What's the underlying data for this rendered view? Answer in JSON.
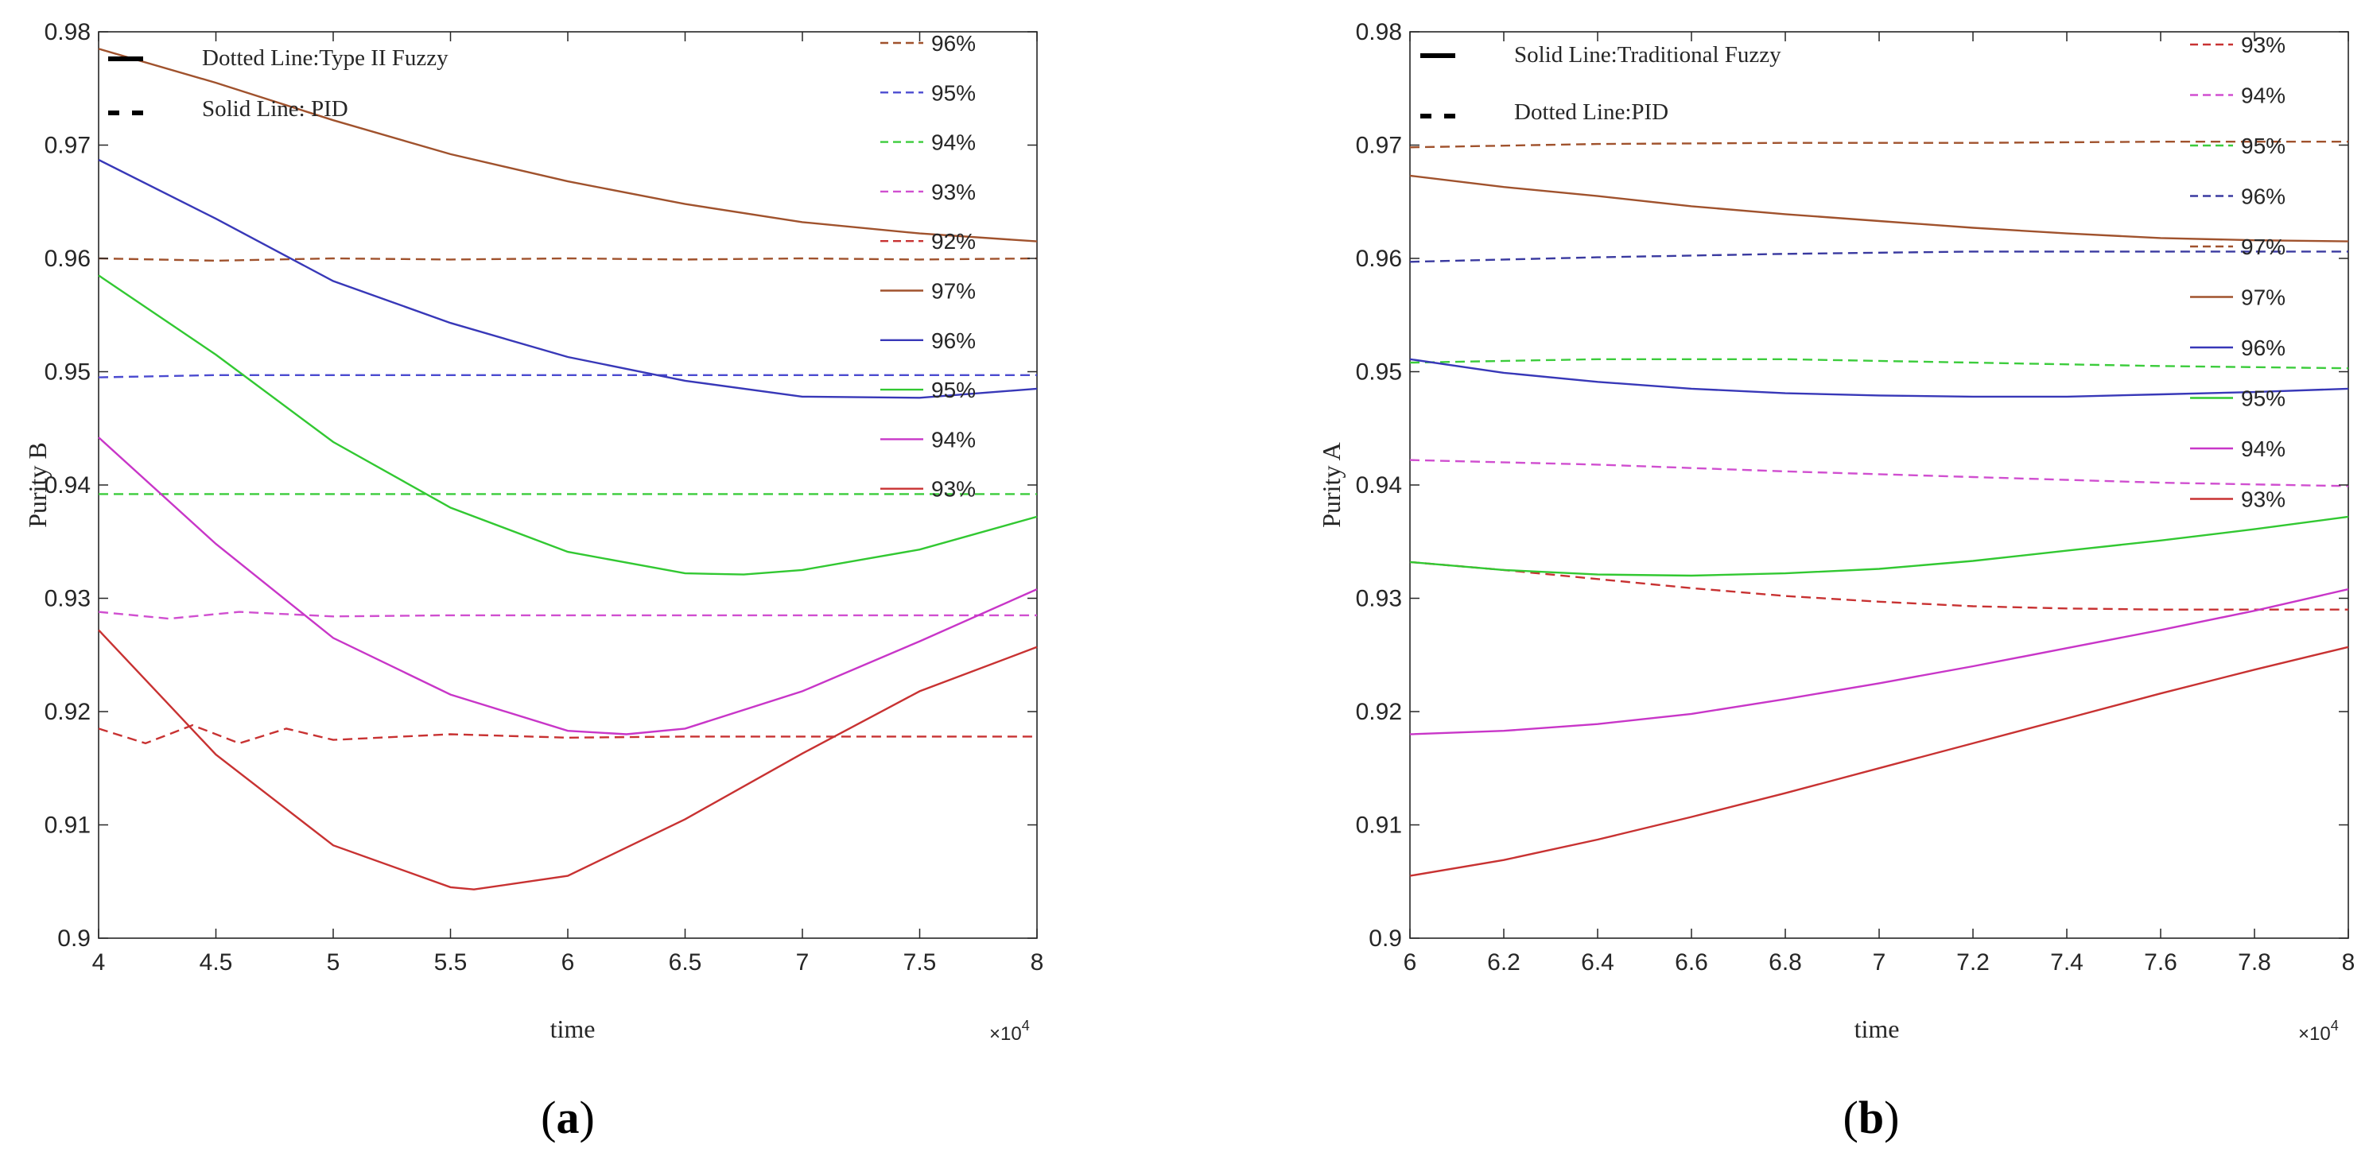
{
  "chart_data": [
    {
      "type": "line",
      "panel": "(a)",
      "caption_letter": "a",
      "xlabel": "time",
      "ylabel": "Purity B",
      "x_multiplier": "×10",
      "x_multiplier_exp": "4",
      "xlim": [
        4,
        8
      ],
      "ylim": [
        0.9,
        0.98
      ],
      "xticks": [
        "4",
        "4.5",
        "5",
        "5.5",
        "6",
        "6.5",
        "7",
        "7.5",
        "8"
      ],
      "xtick_values": [
        4,
        4.5,
        5,
        5.5,
        6,
        6.5,
        7,
        7.5,
        8
      ],
      "yticks": [
        "0.9",
        "0.91",
        "0.92",
        "0.93",
        "0.94",
        "0.95",
        "0.96",
        "0.97",
        "0.98"
      ],
      "ytick_values": [
        0.9,
        0.91,
        0.92,
        0.93,
        0.94,
        0.95,
        0.96,
        0.97,
        0.98
      ],
      "grid": false,
      "style_notes": [
        "Dotted Line:Type II Fuzzy",
        "Solid Line: PID"
      ],
      "legend_position": "top-right",
      "series": [
        {
          "name": "96%",
          "dash": true,
          "color": "#a0522d",
          "x": [
            4,
            4.5,
            5,
            5.5,
            6,
            6.5,
            7,
            7.5,
            8
          ],
          "y": [
            0.96,
            0.9598,
            0.96,
            0.9599,
            0.96,
            0.9599,
            0.96,
            0.9599,
            0.96
          ]
        },
        {
          "name": "95%",
          "dash": true,
          "color": "#4b4bd0",
          "x": [
            4,
            4.5,
            5,
            5.5,
            6,
            6.5,
            7,
            7.5,
            8
          ],
          "y": [
            0.9495,
            0.9497,
            0.9497,
            0.9497,
            0.9497,
            0.9497,
            0.9497,
            0.9497,
            0.9497
          ]
        },
        {
          "name": "94%",
          "dash": true,
          "color": "#3ccc3c",
          "x": [
            4,
            4.5,
            5,
            5.5,
            6,
            6.5,
            7,
            7.5,
            8
          ],
          "y": [
            0.9392,
            0.9392,
            0.9392,
            0.9392,
            0.9392,
            0.9392,
            0.9392,
            0.9392,
            0.9392
          ]
        },
        {
          "name": "93%",
          "dash": true,
          "color": "#d04fd0",
          "x": [
            4,
            4.3,
            4.6,
            5,
            5.5,
            6,
            6.5,
            7,
            7.5,
            8
          ],
          "y": [
            0.9288,
            0.9282,
            0.9288,
            0.9284,
            0.9285,
            0.9285,
            0.9285,
            0.9285,
            0.9285,
            0.9285
          ]
        },
        {
          "name": "92%",
          "dash": true,
          "color": "#c83232",
          "x": [
            4,
            4.2,
            4.4,
            4.6,
            4.8,
            5,
            5.5,
            6,
            6.5,
            7,
            7.5,
            8
          ],
          "y": [
            0.9185,
            0.9172,
            0.9188,
            0.9172,
            0.9185,
            0.9175,
            0.918,
            0.9177,
            0.9178,
            0.9178,
            0.9178,
            0.9178
          ]
        },
        {
          "name": "97%",
          "dash": false,
          "color": "#a0522d",
          "x": [
            4,
            4.5,
            5,
            5.5,
            6,
            6.5,
            7,
            7.5,
            8
          ],
          "y": [
            0.9785,
            0.9755,
            0.9722,
            0.9692,
            0.9668,
            0.9648,
            0.9632,
            0.9622,
            0.9615
          ]
        },
        {
          "name": "96%",
          "dash": false,
          "color": "#3838b8",
          "x": [
            4,
            4.5,
            5,
            5.5,
            6,
            6.5,
            7,
            7.5,
            8
          ],
          "y": [
            0.9687,
            0.9635,
            0.958,
            0.9543,
            0.9513,
            0.9492,
            0.9478,
            0.9477,
            0.9485
          ]
        },
        {
          "name": "95%",
          "dash": false,
          "color": "#32c832",
          "x": [
            4,
            4.5,
            5,
            5.5,
            6,
            6.5,
            6.75,
            7,
            7.5,
            8
          ],
          "y": [
            0.9585,
            0.9515,
            0.9438,
            0.938,
            0.9341,
            0.9322,
            0.9321,
            0.9325,
            0.9343,
            0.9372
          ]
        },
        {
          "name": "94%",
          "dash": false,
          "color": "#c836c8",
          "x": [
            4,
            4.5,
            5,
            5.5,
            6,
            6.25,
            6.5,
            7,
            7.5,
            8
          ],
          "y": [
            0.9442,
            0.9348,
            0.9265,
            0.9215,
            0.9183,
            0.918,
            0.9185,
            0.9218,
            0.9262,
            0.9308
          ]
        },
        {
          "name": "93%",
          "dash": false,
          "color": "#c83232",
          "x": [
            4,
            4.5,
            5,
            5.5,
            5.6,
            6,
            6.5,
            7,
            7.5,
            8
          ],
          "y": [
            0.9272,
            0.9162,
            0.9082,
            0.9045,
            0.9043,
            0.9055,
            0.9105,
            0.9163,
            0.9218,
            0.9257
          ]
        }
      ]
    },
    {
      "type": "line",
      "panel": "(b)",
      "caption_letter": "b",
      "xlabel": "time",
      "ylabel": "Purity A",
      "x_multiplier": "×10",
      "x_multiplier_exp": "4",
      "xlim": [
        6,
        8
      ],
      "ylim": [
        0.9,
        0.98
      ],
      "xticks": [
        "6",
        "6.2",
        "6.4",
        "6.6",
        "6.8",
        "7",
        "7.2",
        "7.4",
        "7.6",
        "7.8",
        "8"
      ],
      "xtick_values": [
        6,
        6.2,
        6.4,
        6.6,
        6.8,
        7,
        7.2,
        7.4,
        7.6,
        7.8,
        8
      ],
      "yticks": [
        "0.9",
        "0.91",
        "0.92",
        "0.93",
        "0.94",
        "0.95",
        "0.96",
        "0.97",
        "0.98"
      ],
      "ytick_values": [
        0.9,
        0.91,
        0.92,
        0.93,
        0.94,
        0.95,
        0.96,
        0.97,
        0.98
      ],
      "grid": false,
      "style_notes": [
        "Solid Line:Traditional Fuzzy",
        "Dotted Line:PID"
      ],
      "legend_position": "top-right",
      "series": [
        {
          "name": "93%",
          "dash": true,
          "color": "#c83232",
          "x": [
            6,
            6.2,
            6.4,
            6.6,
            6.8,
            7,
            7.2,
            7.4,
            7.6,
            7.8,
            8
          ],
          "y": [
            0.9332,
            0.9325,
            0.9317,
            0.9309,
            0.9302,
            0.9297,
            0.9293,
            0.9291,
            0.929,
            0.929,
            0.929
          ]
        },
        {
          "name": "94%",
          "dash": true,
          "color": "#d04fd0",
          "x": [
            6,
            6.4,
            6.8,
            7.2,
            7.6,
            8
          ],
          "y": [
            0.9422,
            0.9418,
            0.9412,
            0.9407,
            0.9402,
            0.9399
          ]
        },
        {
          "name": "95%",
          "dash": true,
          "color": "#3ccc3c",
          "x": [
            6,
            6.4,
            6.8,
            7.2,
            7.6,
            8
          ],
          "y": [
            0.9508,
            0.9511,
            0.9511,
            0.9508,
            0.9505,
            0.9503
          ]
        },
        {
          "name": "96%",
          "dash": true,
          "color": "#3a3aa0",
          "x": [
            6,
            6.4,
            6.8,
            7.2,
            7.6,
            8
          ],
          "y": [
            0.9597,
            0.9601,
            0.9604,
            0.9606,
            0.9606,
            0.9606
          ]
        },
        {
          "name": "97%",
          "dash": true,
          "color": "#a0522d",
          "x": [
            6,
            6.4,
            6.8,
            7.2,
            7.6,
            8
          ],
          "y": [
            0.9698,
            0.9701,
            0.9702,
            0.9702,
            0.9703,
            0.9703
          ]
        },
        {
          "name": "97%",
          "dash": false,
          "color": "#a0522d",
          "x": [
            6,
            6.2,
            6.4,
            6.6,
            6.8,
            7,
            7.2,
            7.4,
            7.6,
            7.8,
            8
          ],
          "y": [
            0.9673,
            0.9663,
            0.9655,
            0.9646,
            0.9639,
            0.9633,
            0.9627,
            0.9622,
            0.9618,
            0.9616,
            0.9615
          ]
        },
        {
          "name": "96%",
          "dash": false,
          "color": "#3838b8",
          "x": [
            6,
            6.2,
            6.4,
            6.6,
            6.8,
            7,
            7.2,
            7.4,
            7.6,
            7.8,
            8
          ],
          "y": [
            0.9511,
            0.9499,
            0.9491,
            0.9485,
            0.9481,
            0.9479,
            0.9478,
            0.9478,
            0.948,
            0.9482,
            0.9485
          ]
        },
        {
          "name": "95%",
          "dash": false,
          "color": "#32c832",
          "x": [
            6,
            6.2,
            6.4,
            6.6,
            6.8,
            7,
            7.2,
            7.4,
            7.6,
            7.8,
            8
          ],
          "y": [
            0.9332,
            0.9325,
            0.9321,
            0.932,
            0.9322,
            0.9326,
            0.9333,
            0.9342,
            0.9351,
            0.9361,
            0.9372
          ]
        },
        {
          "name": "94%",
          "dash": false,
          "color": "#c836c8",
          "x": [
            6,
            6.2,
            6.4,
            6.6,
            6.8,
            7,
            7.2,
            7.4,
            7.6,
            7.8,
            8
          ],
          "y": [
            0.918,
            0.9183,
            0.9189,
            0.9198,
            0.9211,
            0.9225,
            0.924,
            0.9256,
            0.9272,
            0.9289,
            0.9308
          ]
        },
        {
          "name": "93%",
          "dash": false,
          "color": "#c83232",
          "x": [
            6,
            6.2,
            6.4,
            6.6,
            6.8,
            7,
            7.2,
            7.4,
            7.6,
            7.8,
            8
          ],
          "y": [
            0.9055,
            0.9069,
            0.9087,
            0.9107,
            0.9128,
            0.915,
            0.9172,
            0.9194,
            0.9216,
            0.9237,
            0.9257
          ]
        }
      ]
    }
  ]
}
